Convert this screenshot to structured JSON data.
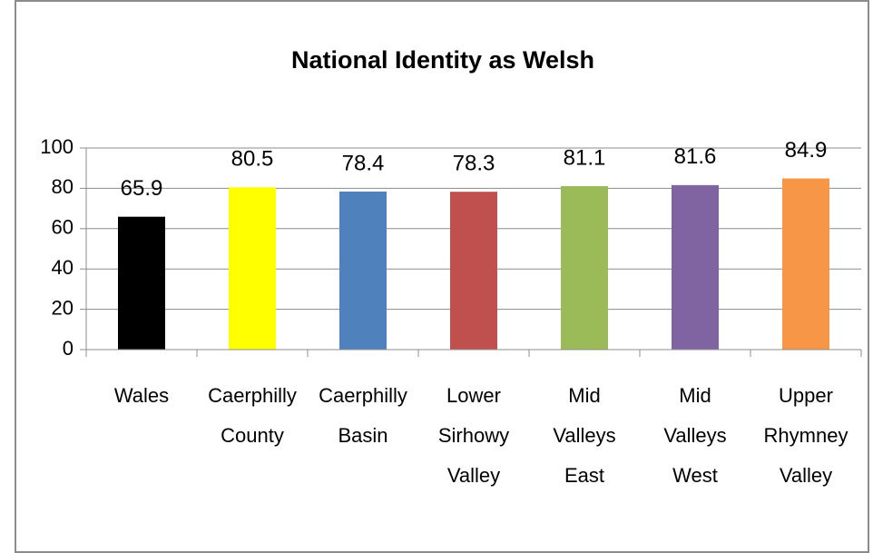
{
  "chart_data": {
    "type": "bar",
    "title": "National Identity as Welsh",
    "categories": [
      "Wales",
      "Caerphilly County",
      "Caerphilly Basin",
      "Lower Sirhowy Valley",
      "Mid Valleys East",
      "Mid Valleys West",
      "Upper Rhymney Valley"
    ],
    "values": [
      65.9,
      80.5,
      78.4,
      78.3,
      81.1,
      81.6,
      84.9
    ],
    "colors": [
      "#000000",
      "#ffff00",
      "#4f81bd",
      "#c0504d",
      "#9bbb59",
      "#8064a2",
      "#f79646"
    ],
    "ylim": [
      0,
      100
    ],
    "yticks": [
      0,
      20,
      40,
      60,
      80,
      100
    ],
    "grid": true
  }
}
